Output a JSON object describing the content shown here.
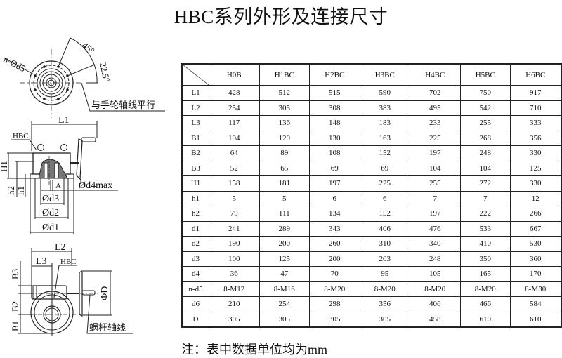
{
  "title": "HBC系列外形及连接尺寸",
  "drawings": {
    "top_view": {
      "bolt_label": "n-Ød5",
      "angle_45": "45°",
      "angle_22_5": "22.5°",
      "parallel_note": "与手轮轴线平行"
    },
    "front_view": {
      "L1": "L1",
      "model": "HBC",
      "H1": "H1",
      "h2": "h2",
      "h1": "h1",
      "A": "A",
      "d4": "Ød4max",
      "d3": "Ød3",
      "d2": "Ød2",
      "d1": "Ød1"
    },
    "side_view": {
      "L2": "L2",
      "L3": "L3",
      "model": "HBC",
      "B3": "B3",
      "B2": "B2",
      "B1": "B1",
      "D": "ΦD",
      "worm_note": "蜗杆轴线"
    }
  },
  "table": {
    "columns": [
      "H0B",
      "H1BC",
      "H2BC",
      "H3BC",
      "H4BC",
      "H5BC",
      "H6BC"
    ],
    "rows": [
      {
        "label": "L1",
        "values": [
          "428",
          "512",
          "515",
          "590",
          "702",
          "750",
          "917"
        ]
      },
      {
        "label": "L2",
        "values": [
          "254",
          "305",
          "308",
          "383",
          "495",
          "542",
          "710"
        ]
      },
      {
        "label": "L3",
        "values": [
          "117",
          "136",
          "148",
          "183",
          "233",
          "255",
          "333"
        ]
      },
      {
        "label": "B1",
        "values": [
          "104",
          "120",
          "130",
          "163",
          "225",
          "268",
          "356"
        ]
      },
      {
        "label": "B2",
        "values": [
          "64",
          "89",
          "108",
          "152",
          "197",
          "248",
          "330"
        ]
      },
      {
        "label": "B3",
        "values": [
          "52",
          "65",
          "69",
          "69",
          "104",
          "104",
          "125"
        ]
      },
      {
        "label": "H1",
        "values": [
          "158",
          "181",
          "197",
          "225",
          "255",
          "272",
          "330"
        ]
      },
      {
        "label": "h1",
        "values": [
          "5",
          "5",
          "6",
          "6",
          "7",
          "7",
          "12"
        ]
      },
      {
        "label": "h2",
        "values": [
          "79",
          "111",
          "134",
          "152",
          "197",
          "222",
          "266"
        ]
      },
      {
        "label": "d1",
        "values": [
          "241",
          "289",
          "343",
          "406",
          "476",
          "533",
          "667"
        ]
      },
      {
        "label": "d2",
        "values": [
          "190",
          "200",
          "260",
          "310",
          "340",
          "410",
          "530"
        ]
      },
      {
        "label": "d3",
        "values": [
          "100",
          "125",
          "200",
          "203",
          "248",
          "350",
          "360"
        ]
      },
      {
        "label": "d4",
        "values": [
          "36",
          "47",
          "70",
          "95",
          "105",
          "165",
          "170"
        ]
      },
      {
        "label": "n-d5",
        "values": [
          "8-M12",
          "8-M16",
          "8-M20",
          "8-M20",
          "8-M20",
          "8-M20",
          "8-M30"
        ]
      },
      {
        "label": "d6",
        "values": [
          "210",
          "254",
          "298",
          "356",
          "406",
          "466",
          "584"
        ]
      },
      {
        "label": "D",
        "values": [
          "305",
          "305",
          "305",
          "305",
          "458",
          "610",
          "610"
        ]
      }
    ]
  },
  "footnote": "注：表中数据单位均为mm"
}
